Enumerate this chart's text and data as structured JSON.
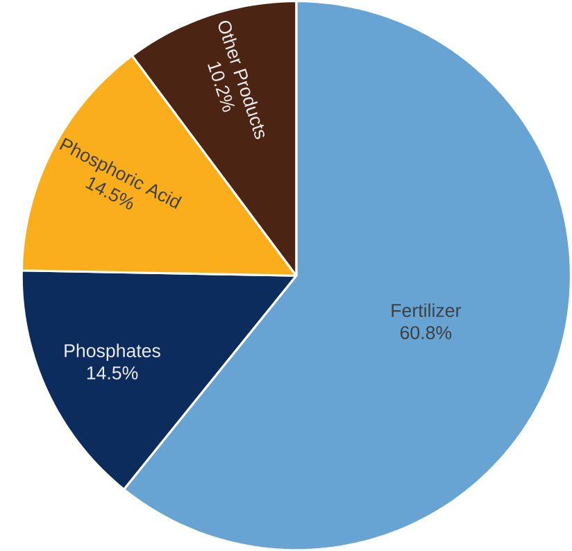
{
  "chart_data": {
    "type": "pie",
    "categories": [
      "Fertilizer",
      "Phosphates",
      "Phosphoric Acid",
      "Other Products"
    ],
    "values": [
      60.8,
      14.5,
      14.5,
      10.2
    ],
    "colors": [
      "#67a3d3",
      "#0b2c5c",
      "#fbae1c",
      "#4b2413"
    ],
    "value_labels": [
      "60.8%",
      "14.5%",
      "14.5%",
      "10.2%"
    ]
  }
}
